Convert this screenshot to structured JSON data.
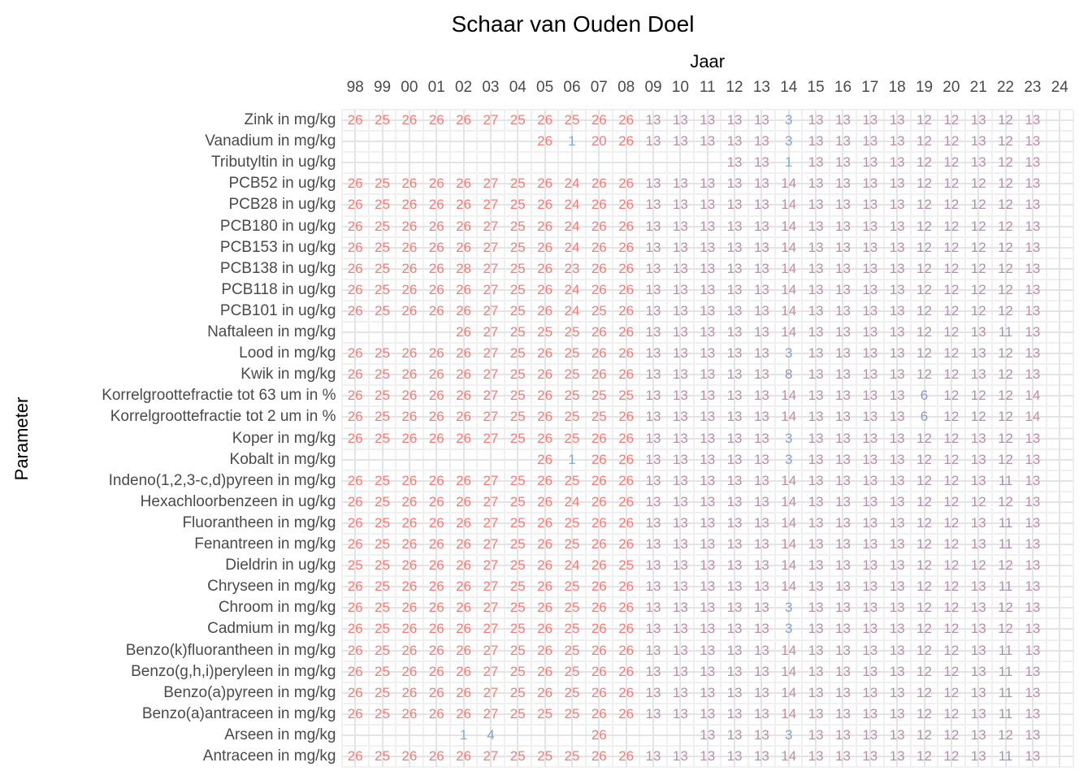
{
  "chart_data": {
    "type": "heatmap",
    "title": "Schaar van Ouden Doel",
    "xlabel": "Jaar",
    "ylabel": "Parameter",
    "legend": "none",
    "grid": "on",
    "x_axis_side": "top",
    "x_labels": [
      "98",
      "99",
      "00",
      "01",
      "02",
      "03",
      "04",
      "05",
      "06",
      "07",
      "08",
      "09",
      "10",
      "11",
      "12",
      "13",
      "14",
      "15",
      "16",
      "17",
      "18",
      "19",
      "20",
      "21",
      "22",
      "23",
      "24"
    ],
    "color_scale": {
      "description": "count value mapped from blue (low) through purple to red (high)",
      "stops": [
        {
          "value": 1,
          "color": "#7FA9D8"
        },
        {
          "value": 8,
          "color": "#9193C4"
        },
        {
          "value": 14,
          "color": "#C48BA5"
        },
        {
          "value": 20,
          "color": "#E57F87"
        },
        {
          "value": 28,
          "color": "#F87B71"
        }
      ]
    },
    "grid_colors": {
      "major": "#e4e4e4",
      "minor": "#f0f0f0"
    },
    "text_colors": {
      "axis_ticks": "#4a4a4a",
      "titles": "#000000"
    },
    "rows": [
      {
        "label": "Zink in mg/kg",
        "values": [
          26,
          25,
          26,
          26,
          26,
          27,
          25,
          26,
          25,
          26,
          26,
          13,
          13,
          13,
          13,
          13,
          3,
          13,
          13,
          13,
          13,
          12,
          12,
          13,
          12,
          13,
          null
        ]
      },
      {
        "label": "Vanadium in mg/kg",
        "values": [
          null,
          null,
          null,
          null,
          null,
          null,
          null,
          26,
          1,
          20,
          26,
          13,
          13,
          13,
          13,
          13,
          3,
          13,
          13,
          13,
          13,
          12,
          12,
          13,
          12,
          13,
          null
        ]
      },
      {
        "label": "Tributyltin in ug/kg",
        "values": [
          null,
          null,
          null,
          null,
          null,
          null,
          null,
          null,
          null,
          null,
          null,
          null,
          null,
          null,
          13,
          13,
          1,
          13,
          13,
          13,
          13,
          12,
          12,
          13,
          12,
          13,
          null
        ]
      },
      {
        "label": "PCB52 in ug/kg",
        "values": [
          26,
          25,
          26,
          26,
          26,
          27,
          25,
          26,
          24,
          26,
          26,
          13,
          13,
          13,
          13,
          13,
          14,
          13,
          13,
          13,
          13,
          12,
          12,
          12,
          12,
          13,
          null
        ]
      },
      {
        "label": "PCB28 in ug/kg",
        "values": [
          26,
          25,
          26,
          26,
          26,
          27,
          25,
          26,
          24,
          26,
          26,
          13,
          13,
          13,
          13,
          13,
          14,
          13,
          13,
          13,
          13,
          12,
          12,
          12,
          12,
          13,
          null
        ]
      },
      {
        "label": "PCB180 in ug/kg",
        "values": [
          26,
          25,
          26,
          26,
          26,
          27,
          25,
          26,
          24,
          26,
          26,
          13,
          13,
          13,
          13,
          13,
          14,
          13,
          13,
          13,
          13,
          12,
          12,
          12,
          12,
          13,
          null
        ]
      },
      {
        "label": "PCB153 in ug/kg",
        "values": [
          26,
          25,
          26,
          26,
          26,
          27,
          25,
          26,
          24,
          26,
          26,
          13,
          13,
          13,
          13,
          13,
          14,
          13,
          13,
          13,
          13,
          12,
          12,
          12,
          12,
          13,
          null
        ]
      },
      {
        "label": "PCB138 in ug/kg",
        "values": [
          26,
          25,
          26,
          26,
          28,
          27,
          25,
          26,
          23,
          26,
          26,
          13,
          13,
          13,
          13,
          13,
          14,
          13,
          13,
          13,
          13,
          12,
          12,
          12,
          12,
          13,
          null
        ]
      },
      {
        "label": "PCB118 in ug/kg",
        "values": [
          26,
          25,
          26,
          26,
          26,
          27,
          25,
          26,
          24,
          26,
          26,
          13,
          13,
          13,
          13,
          13,
          14,
          13,
          13,
          13,
          13,
          12,
          12,
          12,
          12,
          13,
          null
        ]
      },
      {
        "label": "PCB101 in ug/kg",
        "values": [
          26,
          25,
          26,
          26,
          26,
          27,
          25,
          26,
          24,
          25,
          26,
          13,
          13,
          13,
          13,
          13,
          14,
          13,
          13,
          13,
          13,
          12,
          12,
          12,
          12,
          13,
          null
        ]
      },
      {
        "label": "Naftaleen in mg/kg",
        "values": [
          null,
          null,
          null,
          null,
          26,
          27,
          25,
          25,
          25,
          26,
          26,
          13,
          13,
          13,
          13,
          13,
          14,
          13,
          13,
          13,
          13,
          12,
          12,
          13,
          11,
          13,
          null
        ]
      },
      {
        "label": "Lood in mg/kg",
        "values": [
          26,
          25,
          26,
          26,
          26,
          27,
          25,
          26,
          25,
          26,
          26,
          13,
          13,
          13,
          13,
          13,
          3,
          13,
          13,
          13,
          13,
          12,
          12,
          13,
          12,
          13,
          null
        ]
      },
      {
        "label": "Kwik in mg/kg",
        "values": [
          26,
          25,
          26,
          26,
          26,
          27,
          25,
          26,
          25,
          26,
          26,
          13,
          13,
          13,
          13,
          13,
          8,
          13,
          13,
          13,
          13,
          12,
          12,
          13,
          12,
          13,
          null
        ]
      },
      {
        "label": "Korrelgroottefractie tot 63 um in %",
        "values": [
          26,
          25,
          26,
          26,
          26,
          27,
          25,
          26,
          25,
          25,
          25,
          13,
          13,
          13,
          13,
          13,
          14,
          13,
          13,
          13,
          13,
          6,
          12,
          12,
          12,
          14,
          null
        ]
      },
      {
        "label": "Korrelgroottefractie tot 2 um in %",
        "values": [
          26,
          25,
          26,
          26,
          26,
          27,
          25,
          26,
          25,
          25,
          26,
          13,
          13,
          13,
          13,
          13,
          14,
          13,
          13,
          13,
          13,
          6,
          12,
          12,
          12,
          14,
          null
        ]
      },
      {
        "label": "Koper in mg/kg",
        "values": [
          26,
          25,
          26,
          26,
          26,
          27,
          25,
          26,
          25,
          26,
          26,
          13,
          13,
          13,
          13,
          13,
          3,
          13,
          13,
          13,
          13,
          12,
          12,
          13,
          12,
          13,
          null
        ]
      },
      {
        "label": "Kobalt in mg/kg",
        "values": [
          null,
          null,
          null,
          null,
          null,
          null,
          null,
          26,
          1,
          26,
          26,
          13,
          13,
          13,
          13,
          13,
          3,
          13,
          13,
          13,
          13,
          12,
          12,
          13,
          12,
          13,
          null
        ]
      },
      {
        "label": "Indeno(1,2,3-c,d)pyreen in mg/kg",
        "values": [
          26,
          25,
          26,
          26,
          26,
          27,
          25,
          26,
          25,
          26,
          26,
          13,
          13,
          13,
          13,
          13,
          14,
          13,
          13,
          13,
          13,
          12,
          12,
          13,
          11,
          13,
          null
        ]
      },
      {
        "label": "Hexachloorbenzeen in ug/kg",
        "values": [
          26,
          25,
          26,
          26,
          26,
          27,
          25,
          26,
          24,
          26,
          26,
          13,
          13,
          13,
          13,
          13,
          14,
          13,
          13,
          13,
          13,
          12,
          12,
          12,
          12,
          13,
          null
        ]
      },
      {
        "label": "Fluorantheen in mg/kg",
        "values": [
          26,
          25,
          26,
          26,
          26,
          27,
          25,
          26,
          25,
          26,
          26,
          13,
          13,
          13,
          13,
          13,
          14,
          13,
          13,
          13,
          13,
          12,
          12,
          13,
          11,
          13,
          null
        ]
      },
      {
        "label": "Fenantreen in mg/kg",
        "values": [
          26,
          25,
          26,
          26,
          26,
          27,
          25,
          26,
          25,
          26,
          26,
          13,
          13,
          13,
          13,
          13,
          14,
          13,
          13,
          13,
          13,
          12,
          12,
          13,
          11,
          13,
          null
        ]
      },
      {
        "label": "Dieldrin in ug/kg",
        "values": [
          25,
          25,
          26,
          26,
          26,
          27,
          25,
          26,
          24,
          26,
          25,
          13,
          13,
          13,
          13,
          13,
          14,
          13,
          13,
          13,
          13,
          12,
          12,
          12,
          12,
          13,
          null
        ]
      },
      {
        "label": "Chryseen in mg/kg",
        "values": [
          26,
          25,
          26,
          26,
          26,
          27,
          25,
          26,
          25,
          26,
          26,
          13,
          13,
          13,
          13,
          13,
          14,
          13,
          13,
          13,
          13,
          12,
          12,
          13,
          11,
          13,
          null
        ]
      },
      {
        "label": "Chroom in mg/kg",
        "values": [
          26,
          25,
          26,
          26,
          26,
          27,
          25,
          26,
          25,
          26,
          26,
          13,
          13,
          13,
          13,
          13,
          3,
          13,
          13,
          13,
          13,
          12,
          12,
          13,
          12,
          13,
          null
        ]
      },
      {
        "label": "Cadmium in mg/kg",
        "values": [
          26,
          25,
          26,
          26,
          26,
          27,
          25,
          26,
          25,
          26,
          26,
          13,
          13,
          13,
          13,
          13,
          3,
          13,
          13,
          13,
          13,
          12,
          12,
          13,
          12,
          13,
          null
        ]
      },
      {
        "label": "Benzo(k)fluorantheen in mg/kg",
        "values": [
          26,
          25,
          26,
          26,
          26,
          27,
          25,
          26,
          25,
          26,
          26,
          13,
          13,
          13,
          13,
          13,
          14,
          13,
          13,
          13,
          13,
          12,
          12,
          13,
          11,
          13,
          null
        ]
      },
      {
        "label": "Benzo(g,h,i)peryleen in mg/kg",
        "values": [
          26,
          25,
          26,
          26,
          26,
          27,
          25,
          26,
          25,
          26,
          26,
          13,
          13,
          13,
          13,
          13,
          14,
          13,
          13,
          13,
          13,
          12,
          12,
          13,
          11,
          13,
          null
        ]
      },
      {
        "label": "Benzo(a)pyreen in mg/kg",
        "values": [
          26,
          25,
          26,
          26,
          26,
          27,
          25,
          26,
          25,
          26,
          26,
          13,
          13,
          13,
          13,
          13,
          14,
          13,
          13,
          13,
          13,
          12,
          12,
          13,
          11,
          13,
          null
        ]
      },
      {
        "label": "Benzo(a)antraceen in mg/kg",
        "values": [
          26,
          25,
          26,
          26,
          26,
          27,
          25,
          25,
          25,
          26,
          26,
          13,
          13,
          13,
          13,
          13,
          14,
          13,
          13,
          13,
          13,
          12,
          12,
          13,
          11,
          13,
          null
        ]
      },
      {
        "label": "Arseen in mg/kg",
        "values": [
          null,
          null,
          null,
          null,
          1,
          4,
          null,
          null,
          null,
          26,
          null,
          null,
          null,
          13,
          13,
          13,
          3,
          13,
          13,
          13,
          13,
          12,
          12,
          13,
          12,
          13,
          null
        ]
      },
      {
        "label": "Antraceen in mg/kg",
        "values": [
          26,
          25,
          26,
          26,
          26,
          27,
          25,
          25,
          25,
          26,
          26,
          13,
          13,
          13,
          13,
          13,
          14,
          13,
          13,
          13,
          13,
          12,
          12,
          13,
          11,
          13,
          null
        ]
      }
    ]
  }
}
